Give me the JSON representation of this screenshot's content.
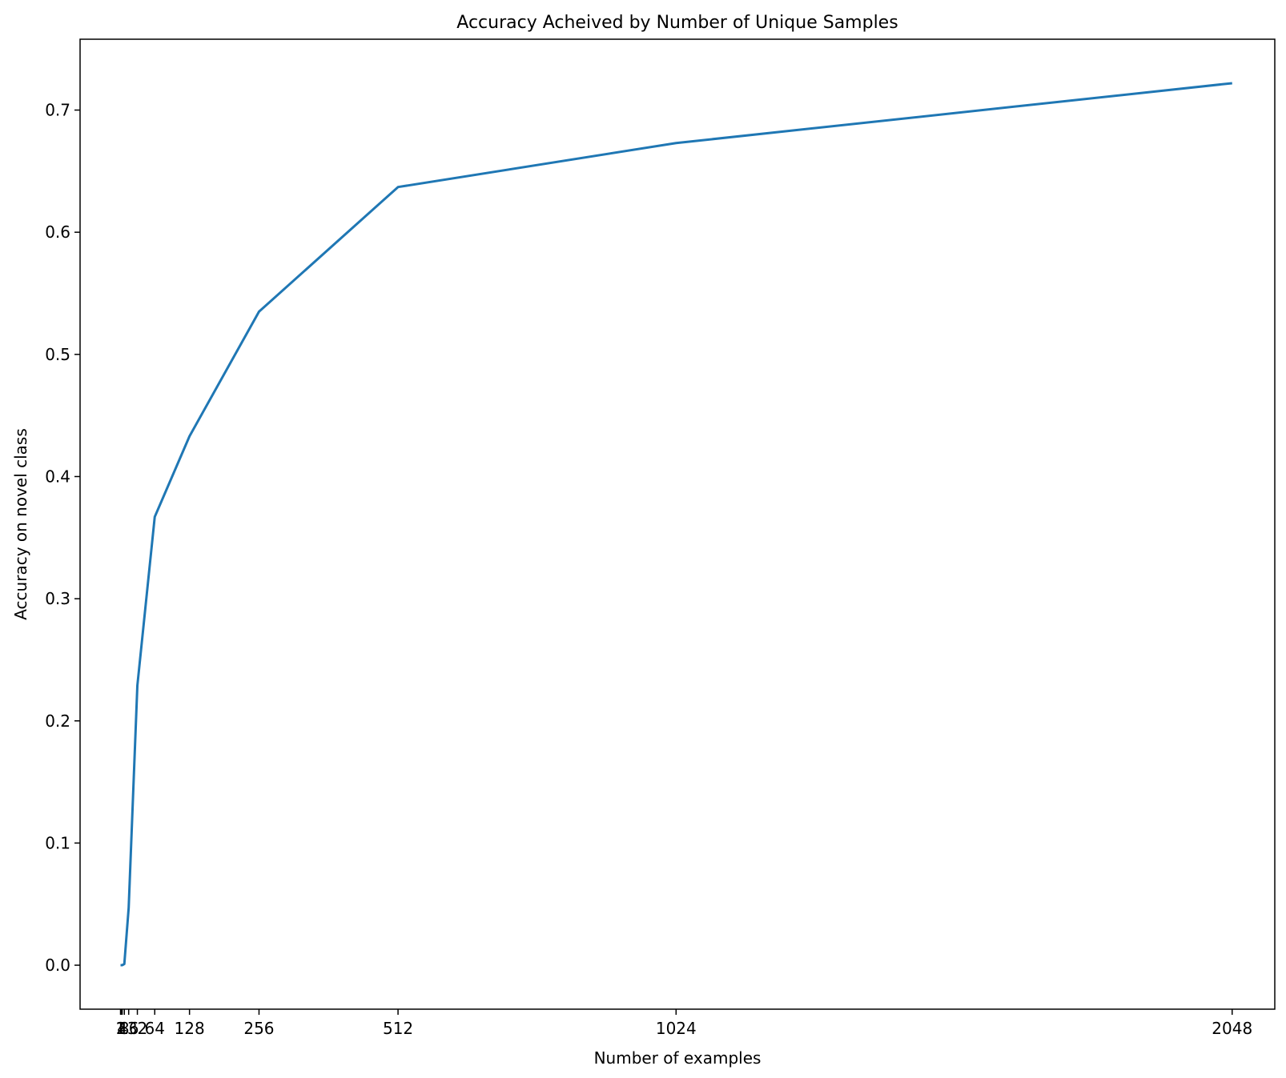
{
  "chart_data": {
    "type": "line",
    "title": "Accuracy Acheived by Number of Unique Samples",
    "xlabel": "Number of examples",
    "ylabel": "Accuracy on novel class",
    "xlim": [
      -73.5,
      2126.5
    ],
    "ylim": [
      -0.036,
      0.758
    ],
    "x_ticks": [
      1,
      2,
      4,
      8,
      16,
      32,
      64,
      128,
      256,
      512,
      1024,
      2048
    ],
    "x_tick_labels": [
      "1",
      "2",
      "4",
      "8",
      "16",
      "32",
      "64",
      "128",
      "256",
      "512",
      "1024",
      "2048"
    ],
    "y_ticks": [
      0.0,
      0.1,
      0.2,
      0.3,
      0.4,
      0.5,
      0.6,
      0.7
    ],
    "y_tick_labels": [
      "0.0",
      "0.1",
      "0.2",
      "0.3",
      "0.4",
      "0.5",
      "0.6",
      "0.7"
    ],
    "grid": false,
    "series": [
      {
        "color": "#1f77b4",
        "x": [
          1,
          2,
          4,
          8,
          16,
          32,
          64,
          128,
          256,
          512,
          1024,
          2048
        ],
        "y": [
          0.0,
          0.0,
          0.0,
          0.001,
          0.047,
          0.229,
          0.367,
          0.433,
          0.535,
          0.637,
          0.673,
          0.722
        ]
      }
    ]
  }
}
